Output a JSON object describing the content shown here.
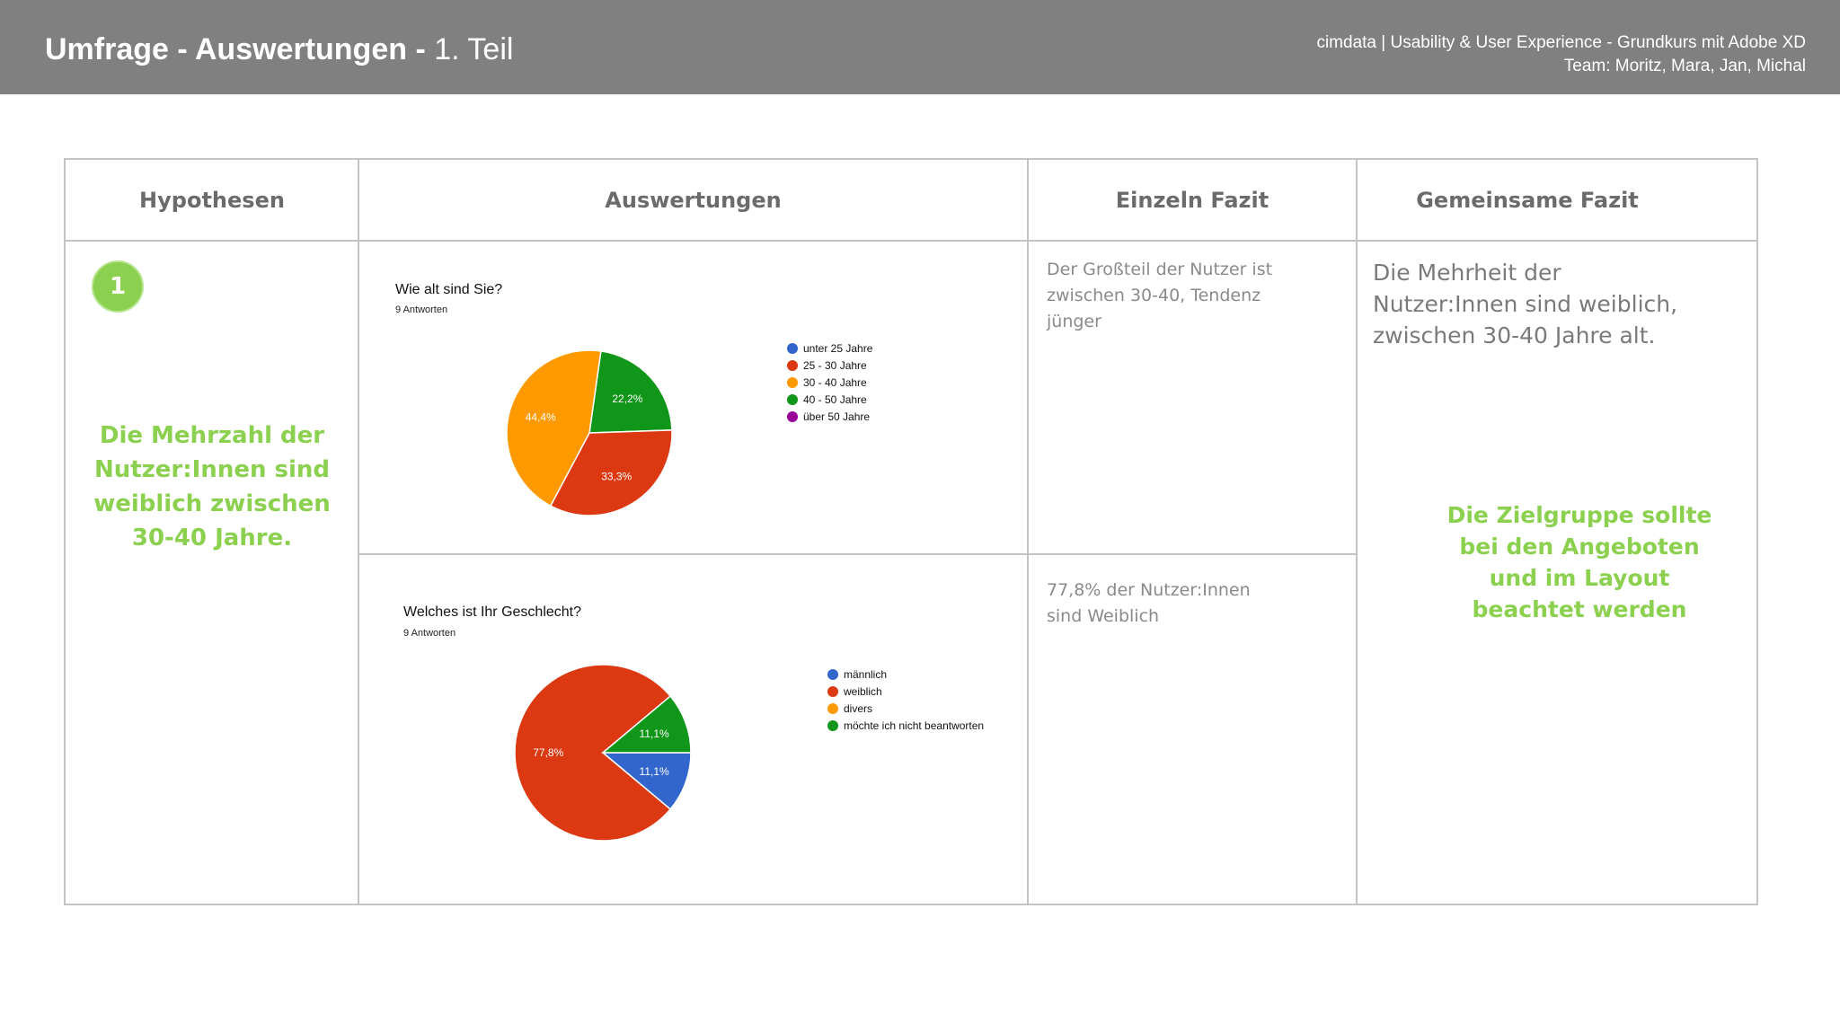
{
  "header": {
    "title_bold": "Umfrage - Auswertungen - ",
    "title_light": "1. Teil",
    "meta_line1": "cimdata | Usability & User Experience - Grundkurs mit Adobe XD",
    "meta_line2": "Team: Moritz, Mara, Jan, Michal"
  },
  "table": {
    "headers": [
      "Hypothesen",
      "Auswertungen",
      "Einzeln Fazit",
      "Gemeinsame Fazit"
    ],
    "badge": "1",
    "hypothesis": "Die Mehrzahl der Nutzer:Innen sind weiblich zwischen 30-40 Jahre.",
    "einzeln_fazit_1": "Der Großteil der Nutzer ist zwischen 30-40, Tendenz jünger",
    "einzeln_fazit_2": "77,8% der Nutzer:Innen sind Weiblich",
    "gemeinsam_fazit": "Die Mehrheit der Nutzer:Innen sind weiblich, zwischen 30-40 Jahre alt.",
    "gemeinsam_green": "Die Zielgruppe sollte bei den Angeboten und im Layout beachtet werden"
  },
  "chart_data": [
    {
      "type": "pie",
      "title": "Wie alt sind Sie?",
      "subtitle": "9 Antworten",
      "categories": [
        "unter 25 Jahre",
        "25 - 30 Jahre",
        "30 - 40 Jahre",
        "40 - 50 Jahre",
        "über 50 Jahre"
      ],
      "values": [
        0,
        33.3,
        44.4,
        22.2,
        0
      ],
      "labels": [
        "",
        "33,3%",
        "44,4%",
        "22,2%",
        ""
      ],
      "colors": [
        "#3366cc",
        "#dc3912",
        "#ff9900",
        "#109618",
        "#990099"
      ],
      "legend_position": "right"
    },
    {
      "type": "pie",
      "title": "Welches ist Ihr Geschlecht?",
      "subtitle": "9 Antworten",
      "categories": [
        "männlich",
        "weiblich",
        "divers",
        "möchte ich nicht beantworten"
      ],
      "values": [
        11.1,
        77.8,
        0,
        11.1
      ],
      "labels": [
        "11,1%",
        "77,8%",
        "",
        "11,1%"
      ],
      "colors": [
        "#3366cc",
        "#dc3912",
        "#ff9900",
        "#109618"
      ],
      "legend_position": "right"
    }
  ]
}
